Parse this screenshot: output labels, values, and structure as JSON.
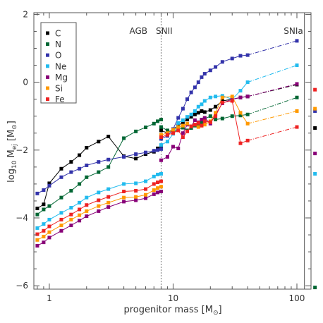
{
  "chart_data": {
    "type": "line",
    "xlabel": "progenitor mass [M",
    "xlabel_sun": "⊙",
    "xlabel_close": "]",
    "ylabel_log": "log",
    "ylabel_sub": "10",
    "ylabel_m": " M",
    "ylabel_ej": "ej",
    "ylabel_unit_open": " [M",
    "ylabel_sun": "⊙",
    "ylabel_close": "]",
    "x_scale": "log",
    "xlim": [
      0.75,
      130
    ],
    "ylim": [
      -6.1,
      2.05
    ],
    "x_ticks": [
      {
        "value": 1,
        "label": "1"
      },
      {
        "value": 10,
        "label": "10"
      },
      {
        "value": 100,
        "label": "100"
      }
    ],
    "y_ticks": [
      {
        "value": 2,
        "label": "2"
      },
      {
        "value": 0,
        "label": "0"
      },
      {
        "value": -2,
        "label": "−2"
      },
      {
        "value": -4,
        "label": "−4"
      },
      {
        "value": -6,
        "label": "−6"
      }
    ],
    "annotations": {
      "agb": "AGB",
      "snii": "SNII",
      "snia": "SNIa"
    },
    "divider_mass": 8,
    "snia_divider_mass": 115,
    "legend": {
      "placement": "top-left"
    },
    "series": [
      {
        "name": "C",
        "color": "#000000",
        "x": [
          0.8,
          0.9,
          1.0,
          1.25,
          1.5,
          1.75,
          2.0,
          2.5,
          3.0,
          4.0,
          5.0,
          6.0,
          7.0,
          7.5,
          8.0
        ],
        "y": [
          -3.72,
          -3.6,
          -2.98,
          -2.55,
          -2.35,
          -2.15,
          -1.93,
          -1.75,
          -1.6,
          -2.18,
          -2.25,
          -2.12,
          -2.05,
          -1.95,
          -1.88
        ],
        "snii_x": [
          8.0,
          9.0,
          10.0,
          11.0,
          12.0,
          13.0,
          14.0,
          15.0,
          16.0,
          17.0,
          18.0,
          20.0,
          22.0,
          25.0,
          30.0,
          35.0,
          40.0,
          100.0
        ],
        "snii_y": [
          -1.42,
          -1.5,
          -1.38,
          -1.28,
          -1.18,
          -1.1,
          -1.02,
          -0.95,
          -0.9,
          -0.85,
          -0.88,
          -0.82,
          -0.72,
          -0.55,
          -0.5,
          -0.45,
          -0.42,
          -0.07
        ],
        "snia_y": -1.35
      },
      {
        "name": "N",
        "color": "#006633",
        "x": [
          0.8,
          0.9,
          1.0,
          1.25,
          1.5,
          1.75,
          2.0,
          2.5,
          3.0,
          4.0,
          5.0,
          6.0,
          7.0,
          7.5,
          8.0
        ],
        "y": [
          -3.9,
          -3.75,
          -3.65,
          -3.4,
          -3.2,
          -3.0,
          -2.8,
          -2.65,
          -2.5,
          -1.65,
          -1.45,
          -1.33,
          -1.22,
          -1.15,
          -1.1
        ],
        "snii_x": [
          8.0,
          9.0,
          10.0,
          11.0,
          12.0,
          13.0,
          14.0,
          15.0,
          16.0,
          17.0,
          18.0,
          20.0,
          22.0,
          25.0,
          30.0,
          35.0,
          40.0,
          100.0
        ],
        "snii_y": [
          -1.32,
          -1.42,
          -1.48,
          -1.38,
          -1.34,
          -1.42,
          -1.35,
          -1.28,
          -1.25,
          -1.2,
          -1.08,
          -1.0,
          -1.1,
          -1.07,
          -1.0,
          -0.98,
          -0.95,
          -0.45
        ],
        "snia_y": -6.05
      },
      {
        "name": "O",
        "color": "#3333aa",
        "x": [
          0.8,
          0.9,
          1.0,
          1.25,
          1.5,
          1.75,
          2.0,
          2.5,
          3.0,
          4.0,
          5.0,
          6.0,
          7.0,
          7.5,
          8.0
        ],
        "y": [
          -3.28,
          -3.18,
          -3.05,
          -2.8,
          -2.65,
          -2.55,
          -2.45,
          -2.35,
          -2.28,
          -2.2,
          -2.12,
          -2.07,
          -2.02,
          -2.0,
          -1.97
        ],
        "snii_x": [
          8.0,
          9.0,
          10.0,
          11.0,
          12.0,
          13.0,
          14.0,
          15.0,
          16.0,
          17.0,
          18.0,
          20.0,
          22.0,
          25.0,
          30.0,
          35.0,
          40.0,
          100.0
        ],
        "snii_y": [
          -1.67,
          -1.58,
          -1.38,
          -1.05,
          -0.78,
          -0.5,
          -0.3,
          -0.15,
          0.0,
          0.15,
          0.25,
          0.35,
          0.45,
          0.6,
          0.7,
          0.78,
          0.8,
          1.22
        ],
        "snia_y": -0.85
      },
      {
        "name": "Ne",
        "color": "#22bbee",
        "x": [
          0.8,
          0.9,
          1.0,
          1.25,
          1.5,
          1.75,
          2.0,
          2.5,
          3.0,
          4.0,
          5.0,
          6.0,
          7.0,
          7.5,
          8.0
        ],
        "y": [
          -4.3,
          -4.18,
          -4.05,
          -3.85,
          -3.7,
          -3.55,
          -3.4,
          -3.25,
          -3.15,
          -3.0,
          -2.98,
          -2.92,
          -2.78,
          -2.72,
          -2.7
        ],
        "snii_x": [
          8.0,
          9.0,
          10.0,
          11.0,
          12.0,
          13.0,
          14.0,
          15.0,
          16.0,
          17.0,
          18.0,
          20.0,
          22.0,
          25.0,
          30.0,
          35.0,
          40.0,
          100.0
        ],
        "snii_y": [
          -1.85,
          -1.75,
          -1.52,
          -1.2,
          -1.12,
          -1.02,
          -0.95,
          -0.85,
          -0.72,
          -0.65,
          -0.55,
          -0.45,
          -0.42,
          -0.4,
          -0.5,
          -0.25,
          0.0,
          0.5
        ],
        "snia_y": -2.7
      },
      {
        "name": "Mg",
        "color": "#880077",
        "x": [
          0.8,
          0.9,
          1.0,
          1.25,
          1.5,
          1.75,
          2.0,
          2.5,
          3.0,
          4.0,
          5.0,
          6.0,
          7.0,
          7.5,
          8.0
        ],
        "y": [
          -4.82,
          -4.72,
          -4.58,
          -4.38,
          -4.22,
          -4.08,
          -3.95,
          -3.8,
          -3.68,
          -3.52,
          -3.48,
          -3.42,
          -3.3,
          -3.25,
          -3.22
        ],
        "snii_x": [
          8.0,
          9.0,
          10.0,
          11.0,
          12.0,
          13.0,
          14.0,
          15.0,
          16.0,
          17.0,
          18.0,
          20.0,
          22.0,
          25.0,
          30.0,
          35.0,
          40.0,
          100.0
        ],
        "snii_y": [
          -2.3,
          -2.2,
          -1.9,
          -1.95,
          -1.5,
          -1.25,
          -1.3,
          -1.12,
          -1.18,
          -1.1,
          -1.05,
          -1.22,
          -0.95,
          -0.62,
          -0.5,
          -0.45,
          -0.42,
          -0.05
        ],
        "snia_y": -2.1
      },
      {
        "name": "Si",
        "color": "#ff9900",
        "x": [
          0.8,
          0.9,
          1.0,
          1.25,
          1.5,
          1.75,
          2.0,
          2.5,
          3.0,
          4.0,
          5.0,
          6.0,
          7.0,
          7.5,
          8.0
        ],
        "y": [
          -4.65,
          -4.55,
          -4.42,
          -4.22,
          -4.05,
          -3.92,
          -3.8,
          -3.65,
          -3.55,
          -3.4,
          -3.38,
          -3.32,
          -3.18,
          -3.12,
          -3.08
        ],
        "snii_x": [
          8.0,
          9.0,
          10.0,
          11.0,
          12.0,
          13.0,
          14.0,
          15.0,
          16.0,
          17.0,
          18.0,
          20.0,
          22.0,
          25.0,
          30.0,
          35.0,
          40.0,
          100.0
        ],
        "snii_y": [
          -1.55,
          -1.5,
          -1.4,
          -1.32,
          -1.28,
          -1.22,
          -1.3,
          -1.25,
          -1.32,
          -1.28,
          -1.25,
          -1.15,
          -0.9,
          -0.45,
          -0.42,
          -0.9,
          -1.22,
          -0.85
        ],
        "snia_y": -0.78
      },
      {
        "name": "Fe",
        "color": "#ee2222",
        "x": [
          0.8,
          0.9,
          1.0,
          1.25,
          1.5,
          1.75,
          2.0,
          2.5,
          3.0,
          4.0,
          5.0,
          6.0,
          7.0,
          7.5,
          8.0
        ],
        "y": [
          -4.48,
          -4.38,
          -4.25,
          -4.05,
          -3.9,
          -3.75,
          -3.62,
          -3.48,
          -3.38,
          -3.22,
          -3.2,
          -3.15,
          -3.0,
          -2.95,
          -2.92
        ],
        "snii_x": [
          8.0,
          9.0,
          10.0,
          11.0,
          12.0,
          13.0,
          14.0,
          15.0,
          16.0,
          17.0,
          18.0,
          20.0,
          22.0,
          25.0,
          30.0,
          35.0,
          40.0,
          100.0
        ],
        "snii_y": [
          -1.62,
          -1.55,
          -1.5,
          -1.42,
          -1.62,
          -1.45,
          -1.3,
          -1.25,
          -1.2,
          -1.28,
          -1.15,
          -1.18,
          -1.0,
          -0.6,
          -0.55,
          -1.8,
          -1.72,
          -1.32
        ],
        "snia_y": -0.22
      }
    ]
  }
}
